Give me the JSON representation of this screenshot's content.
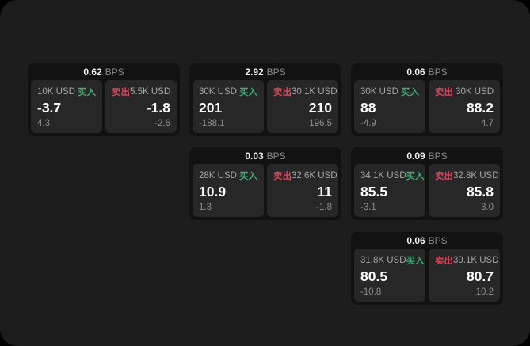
{
  "labels": {
    "bps": "BPS",
    "buy": "买入",
    "sell": "卖出"
  },
  "colors": {
    "page_bg": "#000000",
    "panel_bg": "#1d1d1d",
    "card_bg": "#121212",
    "tile_bg": "#272727",
    "buy_green": "#3fa972",
    "sell_red": "#cf4a5c",
    "value_white": "#fafafa",
    "muted_gray": "#8f8f8f"
  },
  "cards": [
    {
      "bps": "0.62",
      "buy": {
        "amount": "10K USD",
        "value": "-3.7",
        "delta": "4.3"
      },
      "sell": {
        "amount": "5.5K USD",
        "value": "-1.8",
        "delta": "-2.6"
      }
    },
    {
      "bps": "2.92",
      "buy": {
        "amount": "30K USD",
        "value": "201",
        "delta": "-188.1"
      },
      "sell": {
        "amount": "30.1K USD",
        "value": "210",
        "delta": "196.5"
      }
    },
    {
      "bps": "0.06",
      "buy": {
        "amount": "30K USD",
        "value": "88",
        "delta": "-4.9"
      },
      "sell": {
        "amount": "30K USD",
        "value": "88.2",
        "delta": "4.7"
      }
    },
    {
      "bps": "0.03",
      "buy": {
        "amount": "28K USD",
        "value": "10.9",
        "delta": "1.3"
      },
      "sell": {
        "amount": "32.6K USD",
        "value": "11",
        "delta": "-1.8"
      }
    },
    {
      "bps": "0.09",
      "buy": {
        "amount": "34.1K USD",
        "value": "85.5",
        "delta": "-3.1"
      },
      "sell": {
        "amount": "32.8K USD",
        "value": "85.8",
        "delta": "3.0"
      }
    },
    {
      "bps": "0.06",
      "buy": {
        "amount": "31.8K USD",
        "value": "80.5",
        "delta": "-10.8"
      },
      "sell": {
        "amount": "39.1K USD",
        "value": "80.7",
        "delta": "10.2"
      }
    }
  ]
}
